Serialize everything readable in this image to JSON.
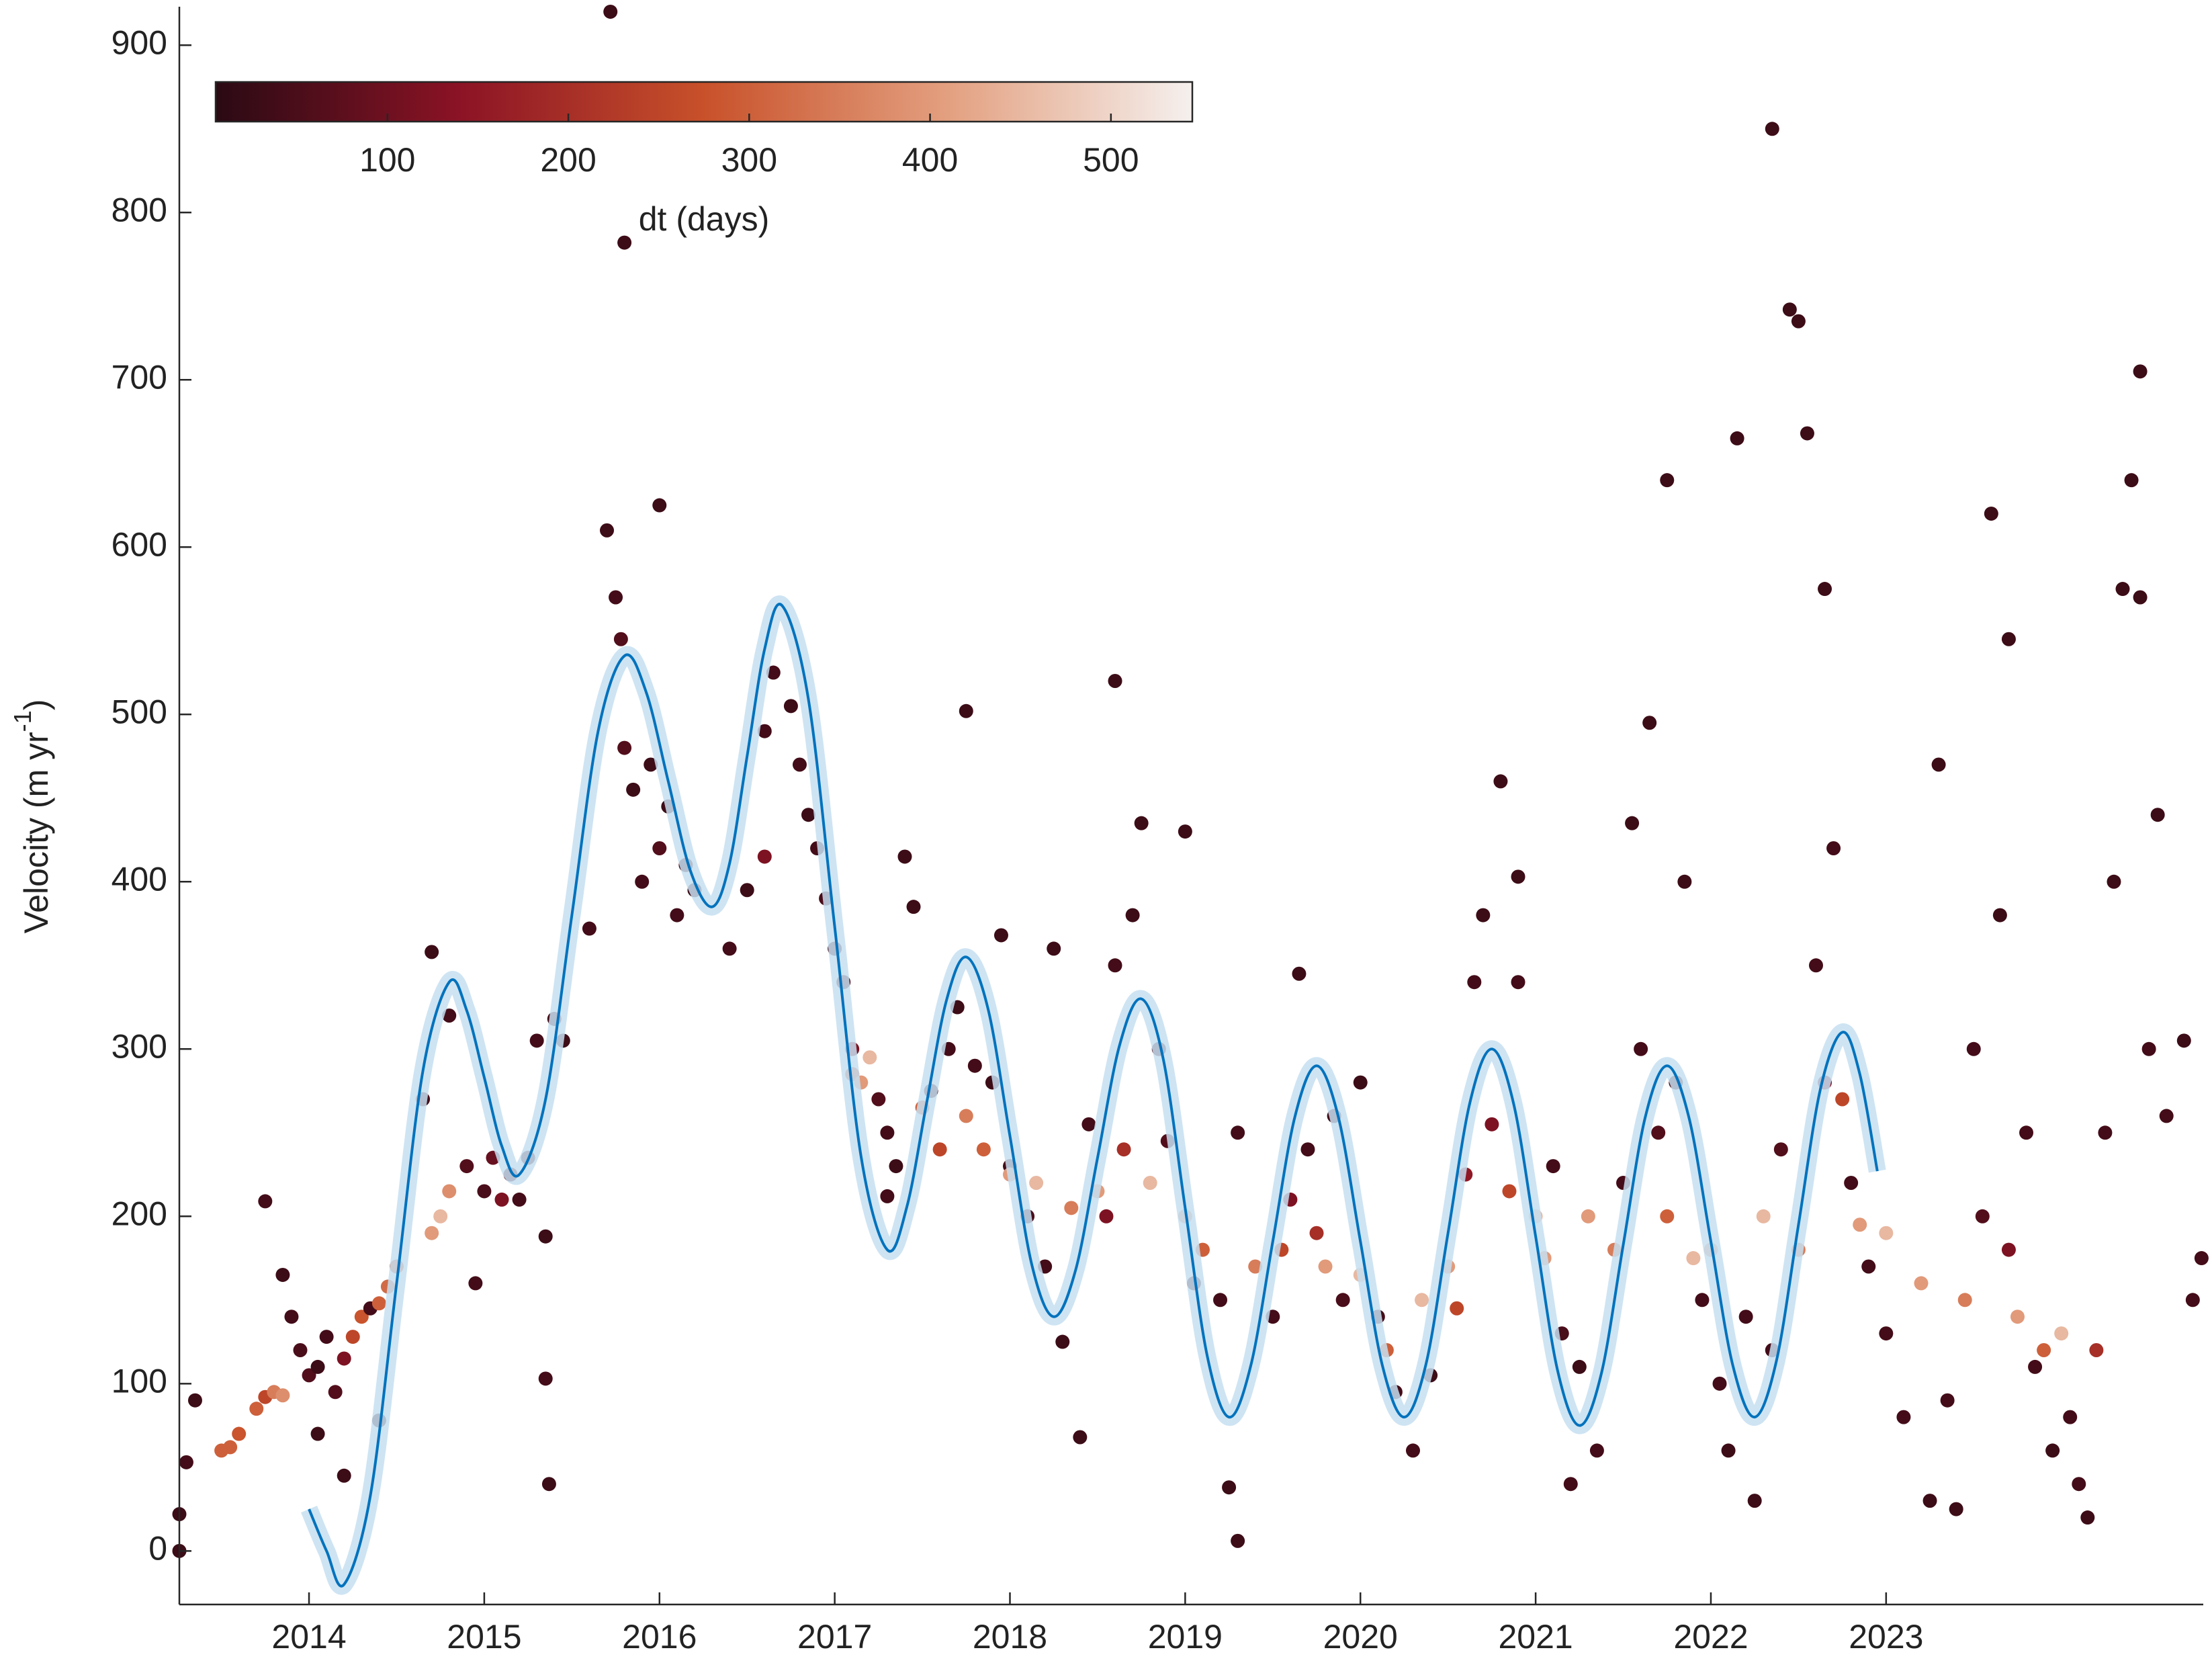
{
  "chart_data": {
    "type": "scatter",
    "ylabel": {
      "text": "Velocity (m yr",
      "sup": "-1",
      "end": ")"
    },
    "xlim": [
      2013.26,
      2024.81
    ],
    "xticks": [
      2014,
      2015,
      2016,
      2017,
      2018,
      2019,
      2020,
      2021,
      2022,
      2023
    ],
    "ylim": [
      -32,
      923
    ],
    "yticks": [
      0,
      100,
      200,
      300,
      400,
      500,
      600,
      700,
      800,
      900
    ],
    "colorbar": {
      "label": "dt (days)",
      "clim": [
        5,
        545
      ],
      "cticks": [
        100,
        200,
        300,
        400,
        500
      ],
      "colormap": [
        "#2a0a14",
        "#8b1325",
        "#c8512a",
        "#e3a080",
        "#f5f0ee"
      ]
    },
    "x": [
      2013.26,
      2013.26,
      2013.3,
      2013.35,
      2013.5,
      2013.55,
      2013.6,
      2013.7,
      2013.75,
      2013.8,
      2013.85,
      2013.75,
      2013.85,
      2013.9,
      2013.95,
      2014.0,
      2014.05,
      2014.1,
      2014.15,
      2014.2,
      2014.25,
      2014.3,
      2014.35,
      2014.4,
      2014.45,
      2014.5,
      2014.2,
      2014.05,
      2014.4,
      2014.7,
      2014.75,
      2014.8,
      2014.65,
      2014.7,
      2014.8,
      2014.9,
      2014.95,
      2015.0,
      2015.05,
      2015.1,
      2015.15,
      2015.2,
      2015.25,
      2015.3,
      2015.35,
      2015.35,
      2015.37,
      2015.4,
      2015.45,
      2015.6,
      2015.7,
      2015.72,
      2015.75,
      2015.78,
      2015.8,
      2015.8,
      2015.85,
      2015.9,
      2015.95,
      2016.0,
      2016.0,
      2016.05,
      2016.1,
      2016.15,
      2016.2,
      2016.4,
      2016.5,
      2016.6,
      2016.6,
      2016.65,
      2016.75,
      2016.8,
      2016.85,
      2016.9,
      2016.95,
      2017.0,
      2017.05,
      2017.1,
      2017.1,
      2017.15,
      2017.2,
      2017.25,
      2017.3,
      2017.3,
      2017.35,
      2017.4,
      2017.45,
      2017.5,
      2017.55,
      2017.6,
      2017.65,
      2017.7,
      2017.75,
      2017.75,
      2017.8,
      2017.85,
      2017.9,
      2017.95,
      2018.0,
      2018.0,
      2018.1,
      2018.15,
      2018.2,
      2018.25,
      2018.3,
      2018.35,
      2018.4,
      2018.45,
      2018.5,
      2018.55,
      2018.6,
      2018.6,
      2018.65,
      2018.7,
      2018.75,
      2018.8,
      2018.85,
      2018.9,
      2019.0,
      2019.0,
      2019.05,
      2019.1,
      2019.2,
      2019.25,
      2019.3,
      2019.3,
      2019.4,
      2019.5,
      2019.55,
      2019.6,
      2019.65,
      2019.7,
      2019.75,
      2019.8,
      2019.85,
      2019.9,
      2020.0,
      2020.0,
      2020.1,
      2020.15,
      2020.2,
      2020.3,
      2020.35,
      2020.4,
      2020.5,
      2020.55,
      2020.6,
      2020.65,
      2020.7,
      2020.75,
      2020.8,
      2020.85,
      2020.9,
      2020.9,
      2021.0,
      2021.05,
      2021.1,
      2021.15,
      2021.2,
      2021.25,
      2021.3,
      2021.35,
      2021.45,
      2021.5,
      2021.55,
      2021.6,
      2021.65,
      2021.7,
      2021.75,
      2021.75,
      2021.8,
      2021.85,
      2021.9,
      2021.95,
      2022.0,
      2022.05,
      2022.1,
      2022.15,
      2022.2,
      2022.25,
      2022.3,
      2022.35,
      2022.35,
      2022.4,
      2022.45,
      2022.5,
      2022.5,
      2022.55,
      2022.6,
      2022.65,
      2022.65,
      2022.7,
      2022.75,
      2022.8,
      2022.85,
      2022.9,
      2023.0,
      2023.0,
      2023.1,
      2023.2,
      2023.25,
      2023.3,
      2023.35,
      2023.4,
      2023.45,
      2023.5,
      2023.55,
      2023.6,
      2023.65,
      2023.7,
      2023.7,
      2023.75,
      2023.8,
      2023.85,
      2023.9,
      2023.95,
      2024.0,
      2024.05,
      2024.1,
      2024.15,
      2024.2,
      2024.25,
      2024.3,
      2024.35,
      2024.4,
      2024.45,
      2024.45,
      2024.5,
      2024.55,
      2024.6,
      2024.7,
      2024.75,
      2024.8
    ],
    "values": [
      0,
      22,
      53,
      90,
      60,
      62,
      70,
      85,
      92,
      95,
      93,
      209,
      165,
      140,
      120,
      105,
      110,
      128,
      95,
      115,
      128,
      140,
      145,
      148,
      158,
      170,
      45,
      70,
      78,
      190,
      200,
      215,
      270,
      358,
      320,
      230,
      160,
      215,
      235,
      210,
      225,
      210,
      235,
      305,
      188,
      103,
      40,
      318,
      305,
      372,
      610,
      920,
      570,
      545,
      480,
      782,
      455,
      400,
      470,
      625,
      420,
      445,
      380,
      410,
      395,
      360,
      395,
      415,
      490,
      525,
      505,
      470,
      440,
      420,
      390,
      360,
      340,
      300,
      285,
      280,
      295,
      270,
      250,
      212,
      230,
      415,
      385,
      265,
      275,
      240,
      300,
      325,
      502,
      260,
      290,
      240,
      280,
      368,
      230,
      225,
      200,
      220,
      170,
      360,
      125,
      205,
      68,
      255,
      215,
      200,
      520,
      350,
      240,
      380,
      435,
      220,
      300,
      245,
      430,
      200,
      160,
      180,
      150,
      38,
      6,
      250,
      170,
      140,
      180,
      210,
      345,
      240,
      190,
      170,
      260,
      150,
      280,
      165,
      140,
      120,
      95,
      60,
      150,
      105,
      170,
      145,
      225,
      340,
      380,
      255,
      460,
      215,
      403,
      340,
      200,
      175,
      230,
      130,
      40,
      110,
      200,
      60,
      180,
      220,
      435,
      300,
      495,
      250,
      640,
      200,
      280,
      400,
      175,
      150,
      180,
      100,
      60,
      665,
      140,
      30,
      200,
      850,
      120,
      240,
      742,
      735,
      180,
      668,
      350,
      575,
      280,
      420,
      270,
      220,
      195,
      170,
      130,
      190,
      80,
      160,
      30,
      470,
      90,
      25,
      150,
      300,
      200,
      620,
      380,
      545,
      180,
      140,
      250,
      110,
      120,
      60,
      130,
      80,
      40,
      20,
      120,
      250,
      400,
      575,
      640,
      705,
      570,
      300,
      440,
      260,
      305,
      150,
      175
    ],
    "dt": [
      30,
      30,
      40,
      30,
      300,
      300,
      280,
      300,
      250,
      350,
      380,
      40,
      30,
      40,
      50,
      60,
      30,
      40,
      60,
      120,
      250,
      280,
      40,
      300,
      320,
      300,
      30,
      30,
      20,
      400,
      450,
      380,
      40,
      30,
      40,
      60,
      40,
      50,
      90,
      120,
      50,
      40,
      60,
      40,
      30,
      40,
      30,
      40,
      30,
      40,
      30,
      30,
      40,
      60,
      60,
      30,
      30,
      40,
      30,
      30,
      60,
      30,
      40,
      40,
      30,
      40,
      30,
      120,
      40,
      40,
      30,
      40,
      30,
      40,
      50,
      40,
      50,
      120,
      300,
      400,
      450,
      60,
      40,
      40,
      30,
      30,
      30,
      300,
      40,
      250,
      40,
      30,
      30,
      350,
      40,
      300,
      30,
      30,
      40,
      400,
      50,
      450,
      40,
      30,
      30,
      350,
      30,
      40,
      400,
      120,
      30,
      40,
      200,
      30,
      30,
      450,
      40,
      60,
      30,
      400,
      40,
      300,
      40,
      30,
      30,
      40,
      350,
      40,
      250,
      120,
      30,
      40,
      200,
      400,
      40,
      50,
      30,
      450,
      40,
      300,
      40,
      40,
      450,
      30,
      400,
      250,
      150,
      40,
      30,
      120,
      30,
      250,
      30,
      40,
      450,
      400,
      40,
      50,
      40,
      30,
      400,
      40,
      350,
      40,
      30,
      40,
      30,
      60,
      30,
      300,
      40,
      30,
      450,
      40,
      400,
      40,
      30,
      30,
      40,
      30,
      450,
      30,
      40,
      60,
      30,
      30,
      350,
      30,
      40,
      30,
      120,
      40,
      250,
      40,
      400,
      40,
      40,
      450,
      40,
      400,
      30,
      30,
      40,
      30,
      350,
      40,
      60,
      30,
      30,
      30,
      120,
      400,
      40,
      40,
      300,
      30,
      450,
      40,
      40,
      30,
      200,
      40,
      30,
      30,
      30,
      30,
      30,
      40,
      30,
      40,
      30,
      40,
      40
    ],
    "fit": {
      "color": "#0072bd",
      "band_color": "#c6dff1",
      "x": [
        2014.0,
        2014.1,
        2014.2,
        2014.35,
        2014.5,
        2014.65,
        2014.8,
        2014.9,
        2015.0,
        2015.1,
        2015.2,
        2015.35,
        2015.5,
        2015.65,
        2015.8,
        2015.925,
        2016.05,
        2016.175,
        2016.3,
        2016.4,
        2016.5,
        2016.6,
        2016.7,
        2016.85,
        2017.0,
        2017.15,
        2017.3,
        2017.4125,
        2017.525,
        2017.6375,
        2017.75,
        2017.875,
        2018.0,
        2018.125,
        2018.25,
        2018.375,
        2018.5,
        2018.625,
        2018.75,
        2018.875,
        2019.0,
        2019.125,
        2019.25,
        2019.375,
        2019.5,
        2019.625,
        2019.75,
        2019.875,
        2020.0,
        2020.125,
        2020.25,
        2020.375,
        2020.5,
        2020.625,
        2020.75,
        2020.875,
        2021.0,
        2021.125,
        2021.25,
        2021.375,
        2021.5,
        2021.625,
        2021.75,
        2021.875,
        2022.0,
        2022.125,
        2022.25,
        2022.375,
        2022.5,
        2022.625,
        2022.75,
        2022.85,
        2022.95
      ],
      "values": [
        25,
        0,
        -20,
        33,
        160,
        287,
        340,
        323,
        283,
        242,
        225,
        270,
        380,
        490,
        535,
        513,
        460,
        407,
        385,
        411,
        475,
        539,
        565,
        509,
        373,
        236,
        180,
        206,
        268,
        329,
        355,
        324,
        248,
        171,
        140,
        168,
        235,
        302,
        330,
        294,
        205,
        117,
        80,
        111,
        185,
        259,
        290,
        259,
        185,
        111,
        80,
        112,
        190,
        268,
        300,
        267,
        188,
        108,
        75,
        106,
        183,
        259,
        290,
        259,
        185,
        111,
        80,
        114,
        195,
        276,
        310,
        285,
        227
      ]
    }
  }
}
